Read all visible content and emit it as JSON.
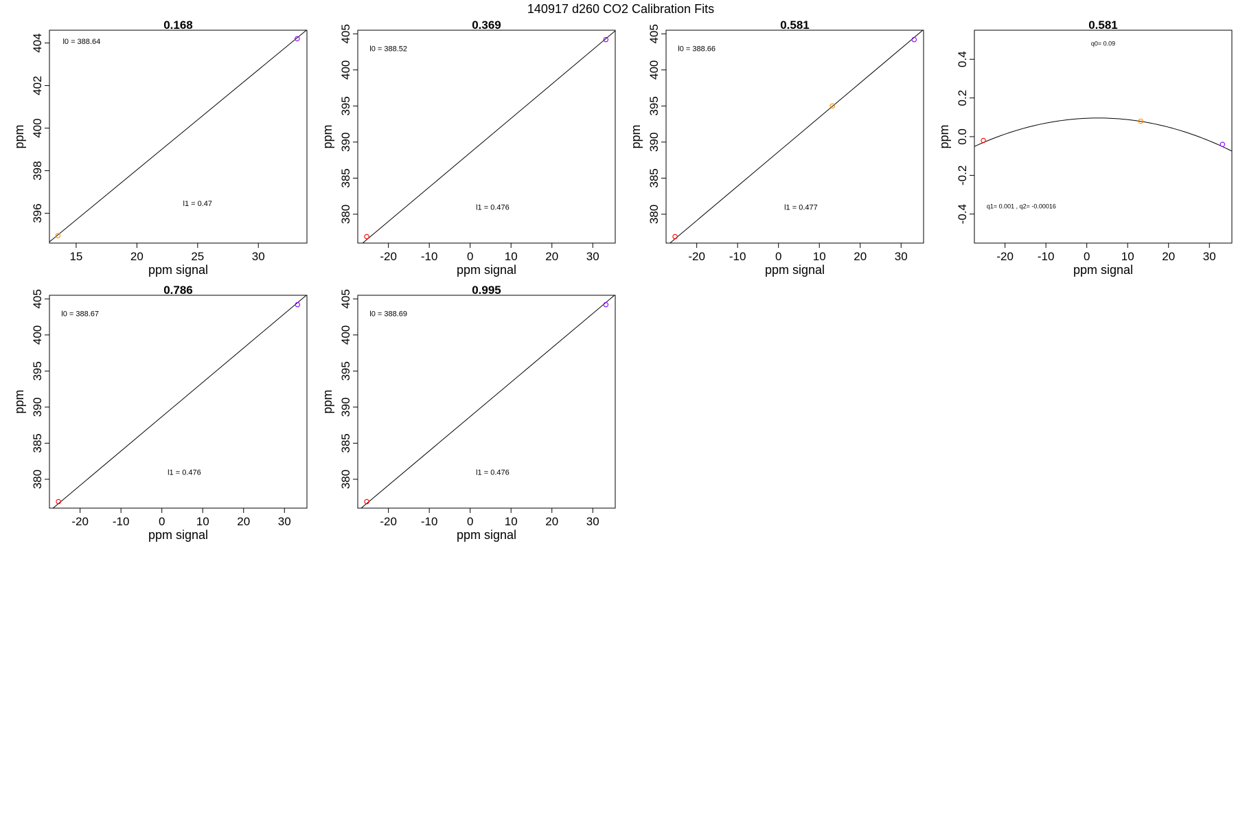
{
  "suptitle": "140917   d260   CO2 Calibration Fits",
  "chart_data": [
    {
      "type": "scatter",
      "title": "0.168",
      "xlabel": "ppm signal",
      "ylabel": "ppm",
      "xlim": [
        12.8,
        34.0
      ],
      "ylim": [
        394.6,
        404.6
      ],
      "xticks": [
        15,
        20,
        25,
        30
      ],
      "yticks": [
        396,
        398,
        400,
        402,
        404
      ],
      "points": [
        {
          "x": 13.5,
          "y": 394.95,
          "color": "#ff8c00"
        },
        {
          "x": 33.2,
          "y": 404.2,
          "color": "#8b00ff"
        }
      ],
      "fit": {
        "kind": "linear",
        "intercept": 388.64,
        "slope": 0.47
      },
      "annotations": [
        {
          "label": "l0 =  388.64",
          "x": 13.9,
          "y": 403.95,
          "size": "normal",
          "anchor": "start"
        },
        {
          "label": "l1 =  0.47",
          "x": 25.0,
          "y": 396.35,
          "size": "normal",
          "anchor": "middle"
        }
      ]
    },
    {
      "type": "scatter",
      "title": "0.369",
      "xlabel": "ppm signal",
      "ylabel": "ppm",
      "xlim": [
        -27.5,
        35.5
      ],
      "ylim": [
        376.0,
        405.5
      ],
      "xticks": [
        -20,
        -10,
        0,
        10,
        20,
        30
      ],
      "yticks": [
        380,
        385,
        390,
        395,
        400,
        405
      ],
      "points": [
        {
          "x": -25.3,
          "y": 376.9,
          "color": "#ff0000"
        },
        {
          "x": 33.2,
          "y": 404.2,
          "color": "#8b00ff"
        }
      ],
      "fit": {
        "kind": "linear",
        "intercept": 388.52,
        "slope": 0.476
      },
      "annotations": [
        {
          "label": "l0 =  388.52",
          "x": -24.6,
          "y": 402.6,
          "size": "normal",
          "anchor": "start"
        },
        {
          "label": "l1 =  0.476",
          "x": 5.5,
          "y": 380.6,
          "size": "normal",
          "anchor": "middle"
        }
      ]
    },
    {
      "type": "scatter",
      "title": "0.581",
      "xlabel": "ppm signal",
      "ylabel": "ppm",
      "xlim": [
        -27.5,
        35.5
      ],
      "ylim": [
        376.0,
        405.5
      ],
      "xticks": [
        -20,
        -10,
        0,
        10,
        20,
        30
      ],
      "yticks": [
        380,
        385,
        390,
        395,
        400,
        405
      ],
      "points": [
        {
          "x": -25.3,
          "y": 376.9,
          "color": "#ff0000"
        },
        {
          "x": 13.2,
          "y": 395.0,
          "color": "#ff8c00"
        },
        {
          "x": 33.2,
          "y": 404.2,
          "color": "#8b00ff"
        }
      ],
      "fit": {
        "kind": "linear",
        "intercept": 388.66,
        "slope": 0.477
      },
      "annotations": [
        {
          "label": "l0 =  388.66",
          "x": -24.6,
          "y": 402.6,
          "size": "normal",
          "anchor": "start"
        },
        {
          "label": "l1 =  0.477",
          "x": 5.5,
          "y": 380.6,
          "size": "normal",
          "anchor": "middle"
        }
      ]
    },
    {
      "type": "scatter",
      "title": "0.581",
      "xlabel": "ppm signal",
      "ylabel": "ppm",
      "xlim": [
        -27.5,
        35.5
      ],
      "ylim": [
        -0.55,
        0.55
      ],
      "xticks": [
        -20,
        -10,
        0,
        10,
        20,
        30
      ],
      "yticks": [
        -0.4,
        -0.2,
        0.0,
        0.2,
        0.4
      ],
      "points": [
        {
          "x": -25.3,
          "y": -0.02,
          "color": "#ff0000"
        },
        {
          "x": 13.2,
          "y": 0.08,
          "color": "#ff8c00"
        },
        {
          "x": 33.2,
          "y": -0.04,
          "color": "#8b00ff"
        }
      ],
      "fit": {
        "kind": "quadratic",
        "q0": 0.095,
        "q1": 0.0009,
        "q2": -0.00016
      },
      "annotations": [
        {
          "label": "q0= 0.09",
          "x": 4.0,
          "y": 0.47,
          "size": "small",
          "anchor": "middle"
        },
        {
          "label": "q1= 0.001  ,  q2= -0.00016",
          "x": -24.5,
          "y": -0.37,
          "size": "small",
          "anchor": "start"
        }
      ]
    },
    {
      "type": "scatter",
      "title": "0.786",
      "xlabel": "ppm signal",
      "ylabel": "ppm",
      "xlim": [
        -27.5,
        35.5
      ],
      "ylim": [
        376.0,
        405.5
      ],
      "xticks": [
        -20,
        -10,
        0,
        10,
        20,
        30
      ],
      "yticks": [
        380,
        385,
        390,
        395,
        400,
        405
      ],
      "points": [
        {
          "x": -25.3,
          "y": 376.9,
          "color": "#ff0000"
        },
        {
          "x": 33.2,
          "y": 404.2,
          "color": "#8b00ff"
        }
      ],
      "fit": {
        "kind": "linear",
        "intercept": 388.67,
        "slope": 0.476
      },
      "annotations": [
        {
          "label": "l0 =  388.67",
          "x": -24.6,
          "y": 402.6,
          "size": "normal",
          "anchor": "start"
        },
        {
          "label": "l1 =  0.476",
          "x": 5.5,
          "y": 380.6,
          "size": "normal",
          "anchor": "middle"
        }
      ]
    },
    {
      "type": "scatter",
      "title": "0.995",
      "xlabel": "ppm signal",
      "ylabel": "ppm",
      "xlim": [
        -27.5,
        35.5
      ],
      "ylim": [
        376.0,
        405.5
      ],
      "xticks": [
        -20,
        -10,
        0,
        10,
        20,
        30
      ],
      "yticks": [
        380,
        385,
        390,
        395,
        400,
        405
      ],
      "points": [
        {
          "x": -25.3,
          "y": 376.9,
          "color": "#ff0000"
        },
        {
          "x": 33.2,
          "y": 404.2,
          "color": "#8b00ff"
        }
      ],
      "fit": {
        "kind": "linear",
        "intercept": 388.69,
        "slope": 0.476
      },
      "annotations": [
        {
          "label": "l0 =  388.69",
          "x": -24.6,
          "y": 402.6,
          "size": "normal",
          "anchor": "start"
        },
        {
          "label": "l1 =  0.476",
          "x": 5.5,
          "y": 380.6,
          "size": "normal",
          "anchor": "middle"
        }
      ]
    }
  ]
}
